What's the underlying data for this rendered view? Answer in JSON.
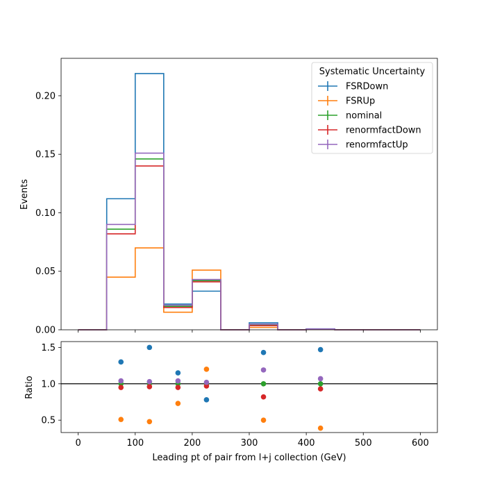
{
  "chart_data": [
    {
      "type": "line",
      "drawstyle": "steps",
      "ylabel": "Events",
      "xlim": [
        -30,
        630
      ],
      "ylim": [
        0,
        0.232
      ],
      "xticks": [
        0,
        100,
        200,
        300,
        400,
        500,
        600
      ],
      "yticks": [
        0.0,
        0.05,
        0.1,
        0.15,
        0.2
      ],
      "ytick_labels": [
        "0.00",
        "0.05",
        "0.10",
        "0.15",
        "0.20"
      ],
      "bin_edges": [
        0,
        50,
        100,
        150,
        200,
        250,
        300,
        350,
        400,
        450,
        500,
        550,
        600
      ],
      "legend": {
        "title": "Systematic Uncertainty",
        "placement": "top-right"
      },
      "series": [
        {
          "name": "FSRDown",
          "color": "#1f77b4",
          "values": [
            0,
            0.112,
            0.219,
            0.022,
            0.033,
            0,
            0.006,
            0,
            0.0008,
            0,
            0,
            0
          ]
        },
        {
          "name": "FSRUp",
          "color": "#ff7f0e",
          "values": [
            0,
            0.045,
            0.07,
            0.015,
            0.051,
            0,
            0.002,
            0,
            0.0003,
            0,
            0,
            0
          ]
        },
        {
          "name": "nominal",
          "color": "#2ca02c",
          "values": [
            0,
            0.086,
            0.146,
            0.02,
            0.042,
            0,
            0.004,
            0,
            0.0007,
            0,
            0,
            0
          ]
        },
        {
          "name": "renormfactDown",
          "color": "#d62728",
          "values": [
            0,
            0.082,
            0.14,
            0.019,
            0.041,
            0,
            0.0035,
            0,
            0.0006,
            0,
            0,
            0
          ]
        },
        {
          "name": "renormfactUp",
          "color": "#9467bd",
          "values": [
            0,
            0.09,
            0.151,
            0.021,
            0.043,
            0,
            0.0048,
            0,
            0.0007,
            0,
            0,
            0
          ]
        }
      ]
    },
    {
      "type": "scatter",
      "xlabel": "Leading pt of pair from l+j collection (GeV)",
      "ylabel": "Ratio",
      "xlim": [
        -30,
        630
      ],
      "ylim": [
        0.33,
        1.58
      ],
      "xticks": [
        0,
        100,
        200,
        300,
        400,
        500,
        600
      ],
      "yticks": [
        0.5,
        1.0,
        1.5
      ],
      "ytick_labels": [
        "0.5",
        "1.0",
        "1.5"
      ],
      "reference_line": 1.0,
      "x": [
        75,
        125,
        175,
        225,
        325,
        425
      ],
      "series": [
        {
          "name": "FSRDown",
          "color": "#1f77b4",
          "values": [
            1.3,
            1.5,
            1.15,
            0.78,
            1.43,
            1.47
          ]
        },
        {
          "name": "FSRUp",
          "color": "#ff7f0e",
          "values": [
            0.51,
            0.48,
            0.73,
            1.2,
            0.5,
            0.39
          ]
        },
        {
          "name": "nominal",
          "color": "#2ca02c",
          "values": [
            1.0,
            1.0,
            1.0,
            1.0,
            1.0,
            1.0
          ]
        },
        {
          "name": "renormfactDown",
          "color": "#d62728",
          "values": [
            0.95,
            0.96,
            0.95,
            0.97,
            0.82,
            0.93
          ]
        },
        {
          "name": "renormfactUp",
          "color": "#9467bd",
          "values": [
            1.04,
            1.03,
            1.04,
            1.02,
            1.19,
            1.07
          ]
        }
      ]
    }
  ]
}
